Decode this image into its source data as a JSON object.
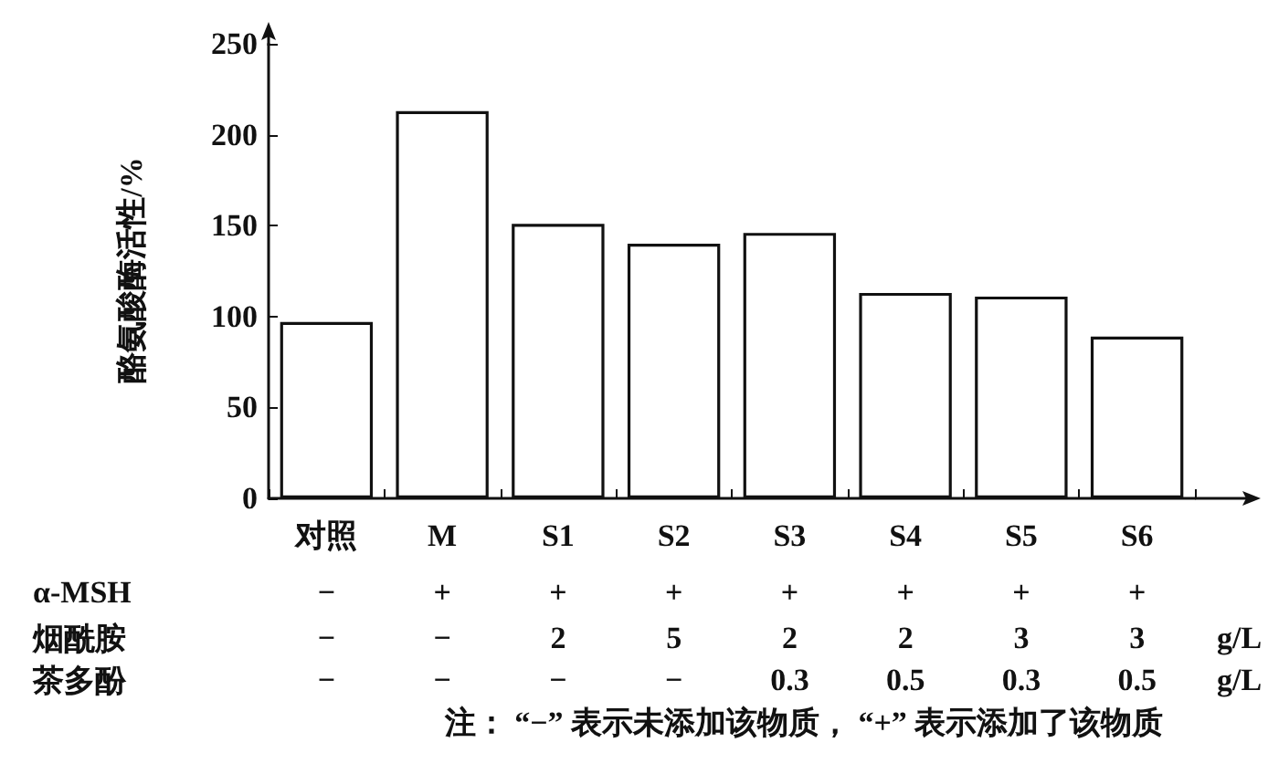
{
  "chart_data": {
    "type": "bar",
    "ylabel": "酪氨酸酶活性/%",
    "categories": [
      "对照",
      "M",
      "S1",
      "S2",
      "S3",
      "S4",
      "S5",
      "S6"
    ],
    "values": [
      97,
      213,
      151,
      140,
      146,
      113,
      111,
      89
    ],
    "color": "#ffffff",
    "ylim": [
      0,
      250
    ],
    "yticks": [
      0,
      50,
      100,
      150,
      200,
      250
    ],
    "grid": false,
    "annotations": [
      "α-MSH − + + + + + + +",
      "烟酰胺 − − 2 5 2 2 3 3 g/L",
      "茶多酚 − − − − 0.3 0.5 0.3 0.5 g/L",
      "注： “−” 表示未添加该物质， “+” 表示添加了该物质"
    ]
  }
}
